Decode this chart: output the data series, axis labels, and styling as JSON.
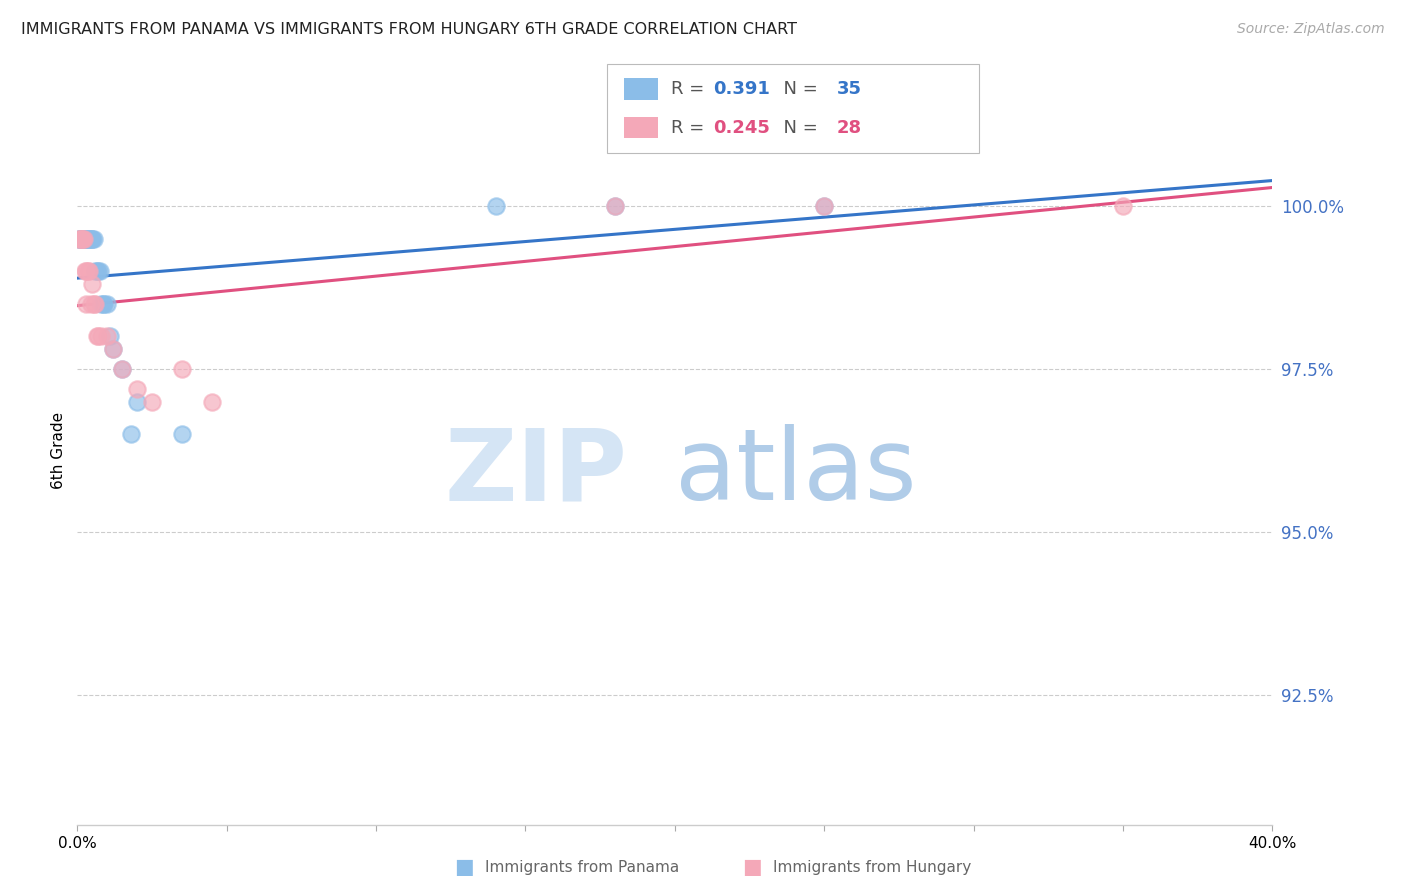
{
  "title": "IMMIGRANTS FROM PANAMA VS IMMIGRANTS FROM HUNGARY 6TH GRADE CORRELATION CHART",
  "source": "Source: ZipAtlas.com",
  "ylabel": "6th Grade",
  "yticks": [
    92.5,
    95.0,
    97.5,
    100.0
  ],
  "ytick_labels": [
    "92.5%",
    "95.0%",
    "97.5%",
    "100.0%"
  ],
  "xlim": [
    0.0,
    40.0
  ],
  "ylim": [
    90.5,
    102.0
  ],
  "legend_r_panama": "0.391",
  "legend_n_panama": "35",
  "legend_r_hungary": "0.245",
  "legend_n_hungary": "28",
  "panama_color": "#8BBDE8",
  "hungary_color": "#F4A8B8",
  "trendline_panama_color": "#3575C8",
  "trendline_hungary_color": "#E05080",
  "panama_x": [
    0.05,
    0.08,
    0.1,
    0.12,
    0.15,
    0.18,
    0.2,
    0.22,
    0.25,
    0.28,
    0.3,
    0.35,
    0.38,
    0.4,
    0.45,
    0.48,
    0.5,
    0.55,
    0.6,
    0.65,
    0.7,
    0.75,
    0.8,
    0.85,
    0.9,
    1.0,
    1.1,
    1.2,
    1.5,
    2.0,
    3.5,
    14.0,
    18.0,
    25.0,
    1.8
  ],
  "panama_y": [
    99.5,
    99.5,
    99.5,
    99.5,
    99.5,
    99.5,
    99.5,
    99.5,
    99.5,
    99.5,
    99.5,
    99.5,
    99.5,
    99.5,
    99.5,
    99.5,
    99.5,
    99.5,
    99.0,
    99.0,
    99.0,
    99.0,
    98.5,
    98.5,
    98.5,
    98.5,
    98.0,
    97.8,
    97.5,
    97.0,
    96.5,
    100.0,
    100.0,
    100.0,
    96.5
  ],
  "hungary_x": [
    0.05,
    0.08,
    0.12,
    0.15,
    0.18,
    0.22,
    0.25,
    0.3,
    0.35,
    0.4,
    0.5,
    0.55,
    0.6,
    0.7,
    0.8,
    1.0,
    1.5,
    2.5,
    3.5,
    18.0,
    25.0,
    35.0,
    0.28,
    0.45,
    0.65,
    1.2,
    2.0,
    4.5
  ],
  "hungary_y": [
    99.5,
    99.5,
    99.5,
    99.5,
    99.5,
    99.5,
    99.0,
    99.0,
    99.0,
    99.0,
    98.8,
    98.5,
    98.5,
    98.0,
    98.0,
    98.0,
    97.5,
    97.0,
    97.5,
    100.0,
    100.0,
    100.0,
    98.5,
    98.5,
    98.0,
    97.8,
    97.2,
    97.0
  ],
  "watermark_zip_color": "#d5e5f5",
  "watermark_atlas_color": "#b0cce8",
  "bottom_legend_panama": "Immigrants from Panama",
  "bottom_legend_hungary": "Immigrants from Hungary"
}
